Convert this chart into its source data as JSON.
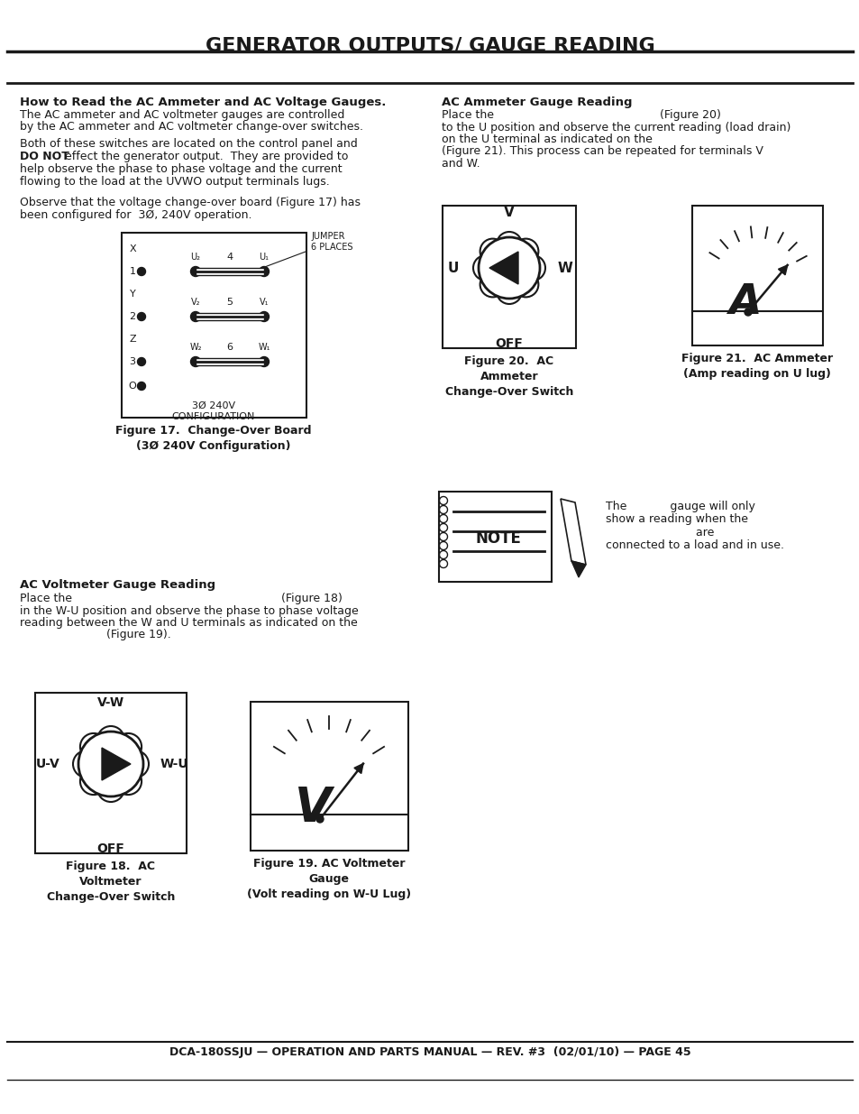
{
  "title": "GENERATOR OUTPUTS/ GAUGE READING",
  "footer": "DCA-180SSJU — OPERATION AND PARTS MANUAL — REV. #3  (02/01/10) — PAGE 45",
  "bg_color": "#ffffff",
  "text_color": "#1a1a1a",
  "sec1_heading": "How to Read the AC Ammeter and AC Voltage Gauges.",
  "sec1_body1_l1": "The AC ammeter and AC voltmeter gauges are controlled",
  "sec1_body1_l2": "by the AC ammeter and AC voltmeter change-over switches.",
  "sec1_body2_l1": "Both of these switches are located on the control panel and",
  "sec1_body2_bold": "DO NOT",
  "sec1_body2_l2": " effect the generator output.  They are provided to",
  "sec1_body2_l3": "help observe the phase to phase voltage and the current",
  "sec1_body2_l4": "flowing to the load at the UVWO output terminals lugs.",
  "sec1_body3_l1": "Observe that the voltage change-over board (Figure 17) has",
  "sec1_body3_l2": "been configured for  3Ø, 240V operation.",
  "fig17_jumper": "JUMPER\n6 PLACES",
  "fig17_bottom": "3Ø 240V\nCONFIGURATION",
  "fig17_caption": "Figure 17.  Change-Over Board\n(3Ø 240V Configuration)",
  "sec3_heading": "AC Ammeter Gauge Reading",
  "sec3_l1": "Place the                                              (Figure 20)",
  "sec3_l2": "to the U position and observe the current reading (load drain)",
  "sec3_l3": "on the U terminal as indicated on the",
  "sec3_l4": "(Figure 21). This process can be repeated for terminals V",
  "sec3_l5": "and W.",
  "fig20_caption": "Figure 20.  AC\nAmmeter\nChange-Over Switch",
  "fig21_caption": "Figure 21.  AC Ammeter\n(Amp reading on U lug)",
  "note_l1": "The            gauge will only",
  "note_l2": "show a reading when the",
  "note_l3": "                         are",
  "note_l4": "connected to a load and in use.",
  "sec2_heading": "AC Voltmeter Gauge Reading",
  "sec2_l1": "Place the                                                          (Figure 18)",
  "sec2_l2": "in the W-U position and observe the phase to phase voltage",
  "sec2_l3": "reading between the W and U terminals as indicated on the",
  "sec2_l4": "                        (Figure 19).",
  "fig18_caption": "Figure 18.  AC\nVoltmeter\nChange-Over Switch",
  "fig19_caption": "Figure 19. AC Voltmeter\nGauge\n(Volt reading on W-U Lug)"
}
